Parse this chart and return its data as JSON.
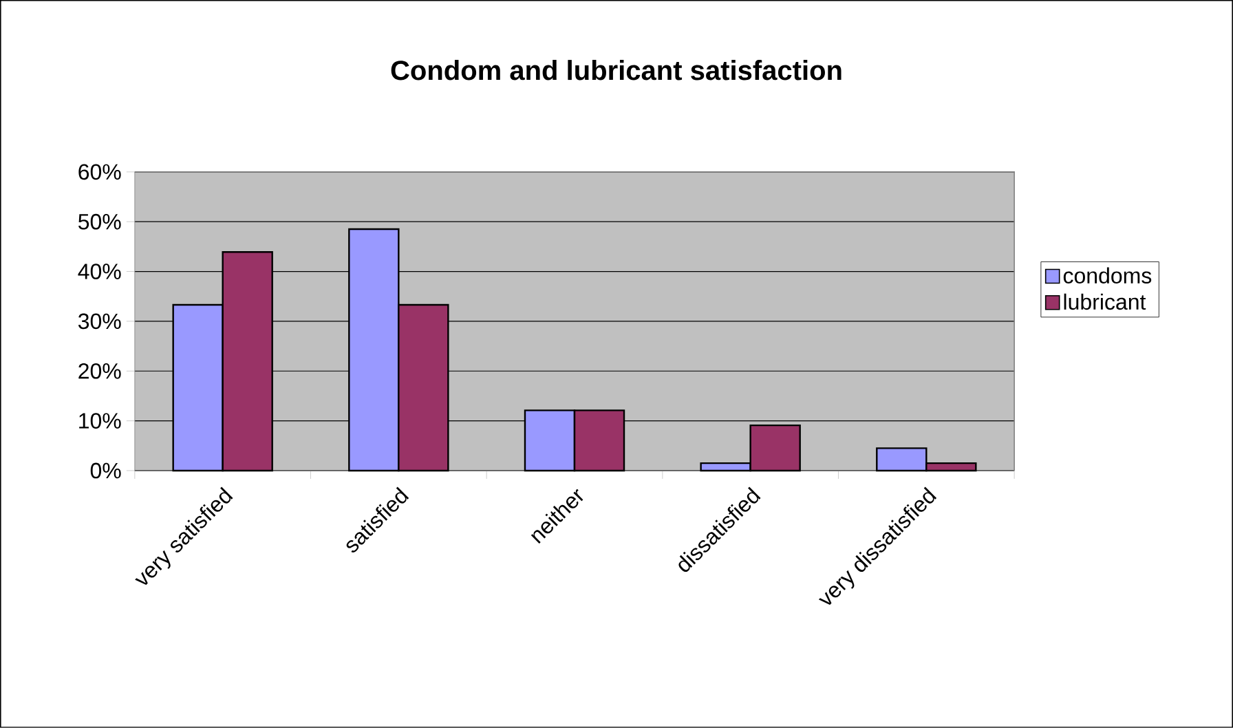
{
  "chart_data": {
    "type": "bar",
    "title": "Condom and lubricant satisfaction",
    "categories": [
      "very satisfied",
      "satisfied",
      "neither",
      "dissatisfied",
      "very dissatisfied"
    ],
    "series": [
      {
        "name": "condoms",
        "color": "#9999ff",
        "values": [
          33.3,
          48.5,
          12.1,
          1.5,
          4.5
        ]
      },
      {
        "name": "lubricant",
        "color": "#993366",
        "values": [
          43.9,
          33.3,
          12.1,
          9.1,
          1.5
        ]
      }
    ],
    "ylim": [
      0,
      60
    ],
    "yticks": [
      {
        "value": 0,
        "label": "0%"
      },
      {
        "value": 10,
        "label": "10%"
      },
      {
        "value": 20,
        "label": "20%"
      },
      {
        "value": 30,
        "label": "30%"
      },
      {
        "value": 40,
        "label": "40%"
      },
      {
        "value": 50,
        "label": "50%"
      },
      {
        "value": 60,
        "label": "60%"
      }
    ],
    "grid": "y",
    "legend": "right"
  }
}
